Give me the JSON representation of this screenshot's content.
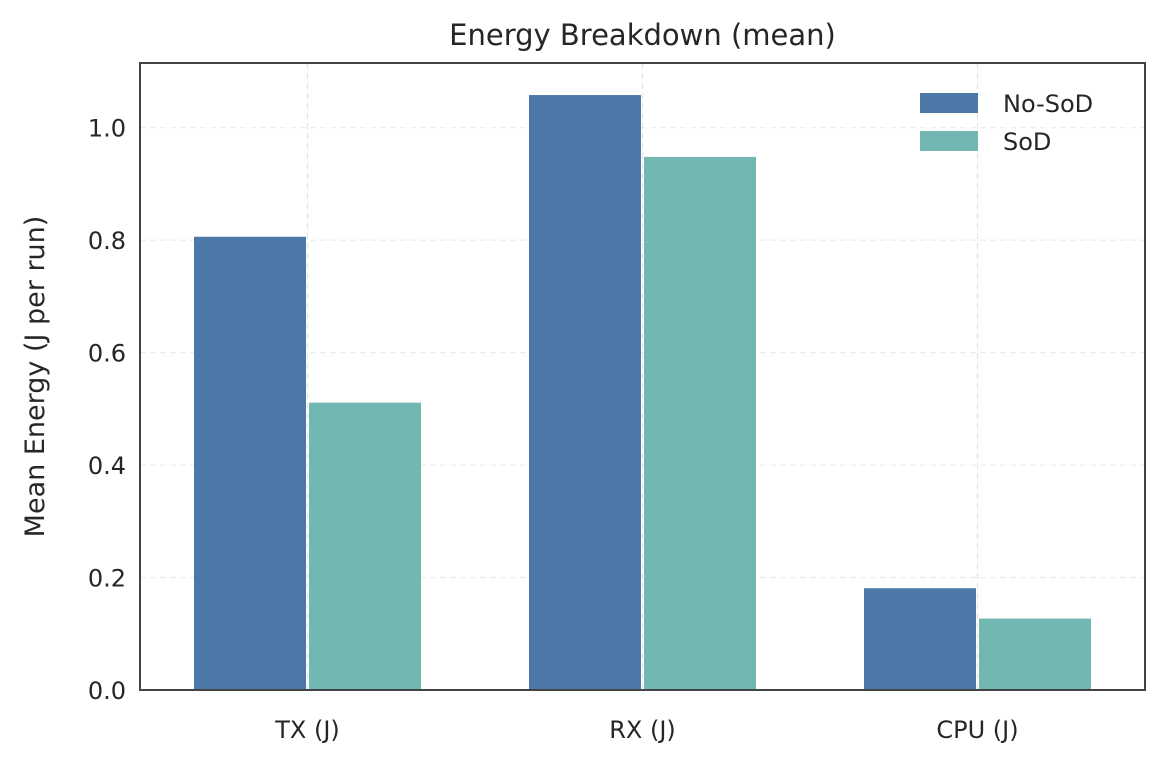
{
  "chart_data": {
    "type": "bar",
    "title": "Energy Breakdown (mean)",
    "xlabel": "",
    "ylabel": "Mean Energy (J per run)",
    "categories": [
      "TX (J)",
      "RX (J)",
      "CPU (J)"
    ],
    "series": [
      {
        "name": "No-SoD",
        "values": [
          0.806,
          1.058,
          0.181
        ],
        "color": "#4c78a8"
      },
      {
        "name": "SoD",
        "values": [
          0.511,
          0.948,
          0.127
        ],
        "color": "#72b7b2"
      }
    ],
    "ylim": [
      0,
      1.115
    ],
    "yticks": [
      0.0,
      0.2,
      0.4,
      0.6,
      0.8,
      1.0
    ],
    "ytick_labels": [
      "0.0",
      "0.2",
      "0.4",
      "0.6",
      "0.8",
      "1.0"
    ],
    "grid": true,
    "legend_position": "top-right"
  }
}
